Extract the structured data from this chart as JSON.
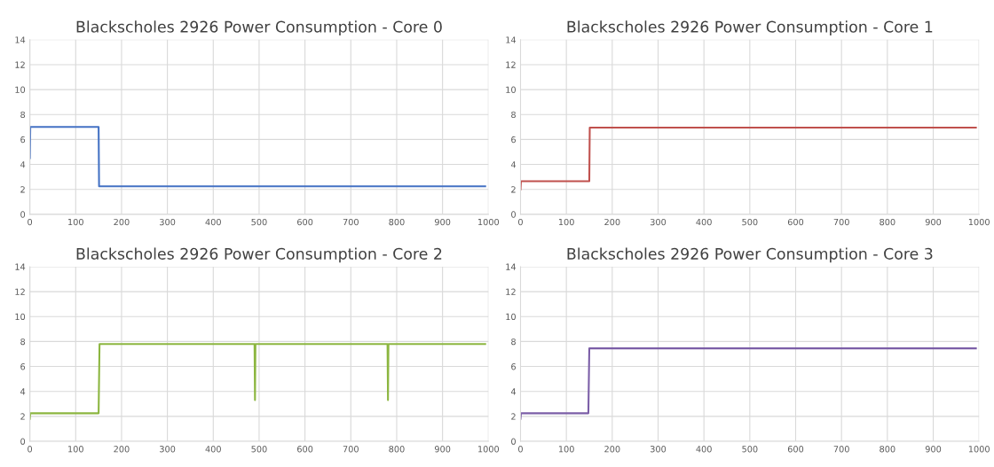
{
  "chart_data": [
    {
      "type": "line",
      "title": "Blackscholes 2926 Power Consumption - Core 0",
      "x": [
        0,
        1,
        150,
        151,
        993
      ],
      "series": [
        {
          "color": "#4472c4",
          "values": [
            4.5,
            7.0,
            7.0,
            2.25,
            2.25
          ]
        }
      ],
      "xlim": [
        0,
        1000
      ],
      "xticks": [
        0,
        100,
        200,
        300,
        400,
        500,
        600,
        700,
        800,
        900,
        1000
      ],
      "ylim": [
        0,
        14
      ],
      "yticks": [
        0,
        2,
        4,
        6,
        8,
        10,
        12,
        14
      ],
      "grid": true,
      "marker": "none",
      "line_style": "solid"
    },
    {
      "type": "line",
      "title": "Blackscholes 2926 Power Consumption - Core 1",
      "x": [
        0,
        1,
        150,
        151,
        993
      ],
      "series": [
        {
          "color": "#c0504d",
          "values": [
            2.0,
            2.65,
            2.65,
            6.95,
            6.95
          ]
        }
      ],
      "xlim": [
        0,
        1000
      ],
      "xticks": [
        0,
        100,
        200,
        300,
        400,
        500,
        600,
        700,
        800,
        900,
        1000
      ],
      "ylim": [
        0,
        14
      ],
      "yticks": [
        0,
        2,
        4,
        6,
        8,
        10,
        12,
        14
      ],
      "grid": true,
      "marker": "none",
      "line_style": "solid"
    },
    {
      "type": "line",
      "title": "Blackscholes 2926 Power Consumption - Core 2",
      "x": [
        0,
        1,
        150,
        152,
        490,
        491,
        492,
        780,
        781,
        782,
        993
      ],
      "series": [
        {
          "color": "#8cb640",
          "values": [
            1.8,
            2.25,
            2.25,
            7.8,
            7.8,
            3.3,
            7.8,
            7.8,
            3.3,
            7.8,
            7.8
          ]
        }
      ],
      "xlim": [
        0,
        1000
      ],
      "xticks": [
        0,
        100,
        200,
        300,
        400,
        500,
        600,
        700,
        800,
        900,
        1000
      ],
      "ylim": [
        0,
        14
      ],
      "yticks": [
        0,
        2,
        4,
        6,
        8,
        10,
        12,
        14
      ],
      "grid": true,
      "marker": "none",
      "line_style": "solid"
    },
    {
      "type": "line",
      "title": "Blackscholes 2926 Power Consumption - Core 3",
      "x": [
        0,
        1,
        148,
        150,
        993
      ],
      "series": [
        {
          "color": "#7b5ea7",
          "values": [
            1.8,
            2.25,
            2.25,
            7.45,
            7.45
          ]
        }
      ],
      "xlim": [
        0,
        1000
      ],
      "xticks": [
        0,
        100,
        200,
        300,
        400,
        500,
        600,
        700,
        800,
        900,
        1000
      ],
      "ylim": [
        0,
        14
      ],
      "yticks": [
        0,
        2,
        4,
        6,
        8,
        10,
        12,
        14
      ],
      "grid": true,
      "marker": "none",
      "line_style": "solid"
    }
  ]
}
